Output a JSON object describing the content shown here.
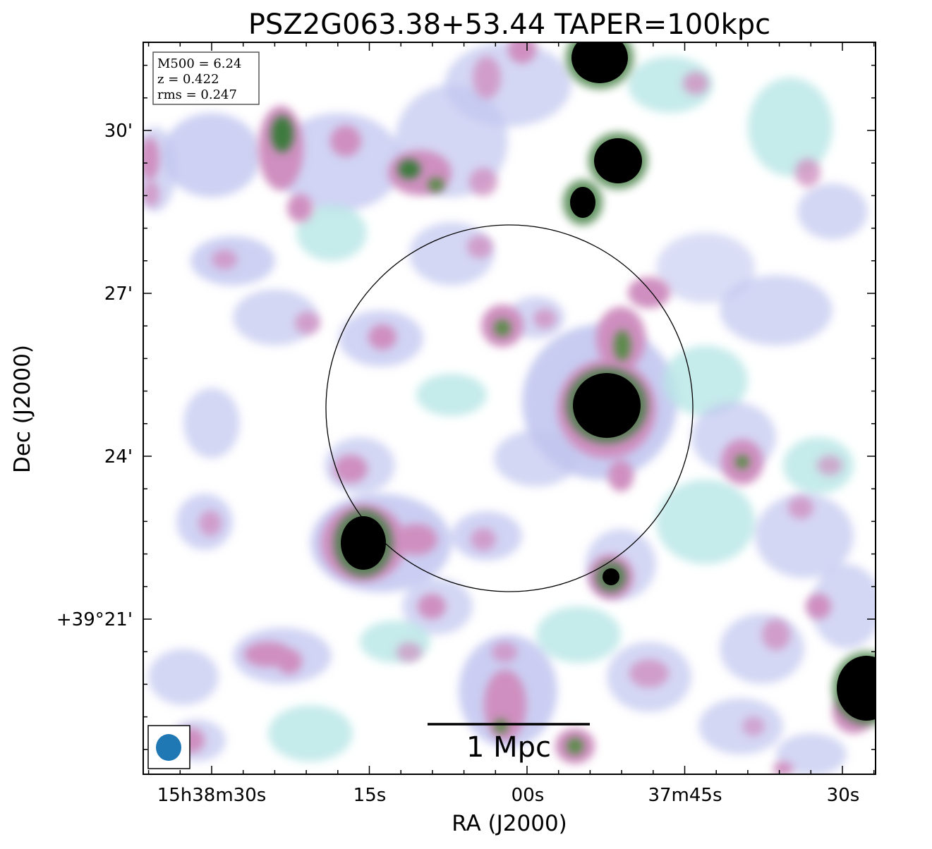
{
  "figure": {
    "title": "PSZ2G063.38+53.44 TAPER=100kpc",
    "xlabel": "RA (J2000)",
    "ylabel": "Dec (J2000)",
    "x_ticks": [
      "15h38m30s",
      "15s",
      "00s",
      "37m45s",
      "30s"
    ],
    "y_ticks": [
      "30'",
      "27'",
      "24'",
      "+39°21'"
    ],
    "info_box": {
      "line1": "M500 = 6.24",
      "line2": "z = 0.422",
      "line3": "rms = 0.247"
    },
    "scalebar_label": "1 Mpc",
    "beam_color": "#1f77b4",
    "colormap": [
      "#ffffff",
      "#b8e6e6",
      "#c2c6f0",
      "#cf8fc0",
      "#3c7a3c",
      "#000000"
    ]
  }
}
